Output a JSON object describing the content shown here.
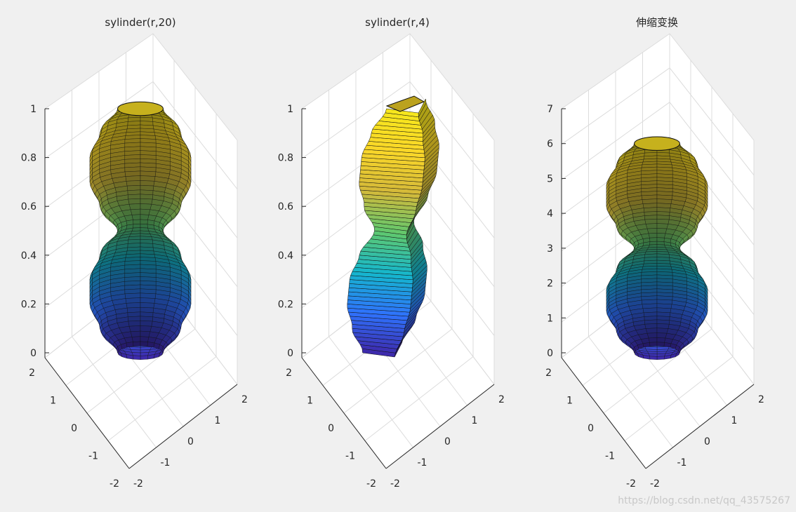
{
  "figure": {
    "background": "#f0f0f0",
    "axes_background": "#ffffff",
    "grid_color": "#dcdcdc"
  },
  "colormap": [
    "#3e26a8",
    "#2f72fb",
    "#15b6cd",
    "#5fc86e",
    "#d3b93a",
    "#f9d629",
    "#f6e71c"
  ],
  "chart_data": [
    {
      "type": "surface",
      "title": "sylinder(r,20)",
      "xlabel": "",
      "ylabel": "",
      "zlabel": "",
      "xlim": [
        -2,
        2
      ],
      "ylim": [
        -2,
        2
      ],
      "zlim": [
        0,
        1
      ],
      "x_ticks": [
        "-2",
        "-1",
        "0",
        "1",
        "2"
      ],
      "y_ticks": [
        "-2",
        "-1",
        "0",
        "1",
        "2"
      ],
      "z_ticks": [
        "0",
        "0.2",
        "0.4",
        "0.6",
        "0.8",
        "1"
      ],
      "generator": "cylinder(r, 20)",
      "profile_radius": [
        0.45,
        0.8,
        1.0,
        1.0,
        0.8,
        0.45,
        0.8,
        1.0,
        1.0,
        0.8,
        0.45
      ],
      "z_values": [
        0.0,
        0.1,
        0.2,
        0.3,
        0.4,
        0.5,
        0.6,
        0.7,
        0.8,
        0.9,
        1.0
      ],
      "angular_segments": 20,
      "grid": true
    },
    {
      "type": "surface",
      "title": "sylinder(r,4)",
      "xlabel": "",
      "ylabel": "",
      "zlabel": "",
      "xlim": [
        -2,
        2
      ],
      "ylim": [
        -2,
        2
      ],
      "zlim": [
        0,
        1
      ],
      "x_ticks": [
        "-2",
        "-1",
        "0",
        "1",
        "2"
      ],
      "y_ticks": [
        "-2",
        "-1",
        "0",
        "1",
        "2"
      ],
      "z_ticks": [
        "0",
        "0.2",
        "0.4",
        "0.6",
        "0.8",
        "1"
      ],
      "generator": "cylinder(r, 4)",
      "profile_radius": [
        0.45,
        0.8,
        1.0,
        1.0,
        0.8,
        0.45,
        0.8,
        1.0,
        1.0,
        0.8,
        0.45
      ],
      "z_values": [
        0.0,
        0.1,
        0.2,
        0.3,
        0.4,
        0.5,
        0.6,
        0.7,
        0.8,
        0.9,
        1.0
      ],
      "angular_segments": 4,
      "grid": true
    },
    {
      "type": "surface",
      "title": "伸缩变换",
      "xlabel": "",
      "ylabel": "",
      "zlabel": "",
      "xlim": [
        -2,
        2
      ],
      "ylim": [
        -2,
        2
      ],
      "zlim": [
        0,
        7
      ],
      "x_ticks": [
        "-2",
        "-1",
        "0",
        "1",
        "2"
      ],
      "y_ticks": [
        "-2",
        "-1",
        "0",
        "1",
        "2"
      ],
      "z_ticks": [
        "0",
        "1",
        "2",
        "3",
        "4",
        "5",
        "6",
        "7"
      ],
      "generator": "cylinder(r, 20), z scaled",
      "profile_radius": [
        0.45,
        0.8,
        1.0,
        1.0,
        0.8,
        0.45,
        0.8,
        1.0,
        1.0,
        0.8,
        0.45
      ],
      "z_values": [
        0.0,
        0.6,
        1.2,
        1.8,
        2.4,
        3.0,
        3.6,
        4.2,
        4.8,
        5.4,
        6.0
      ],
      "angular_segments": 20,
      "grid": true
    }
  ],
  "watermark": "https://blog.csdn.net/qq_43575267"
}
